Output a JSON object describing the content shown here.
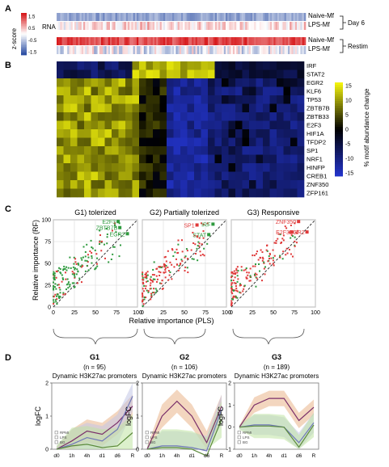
{
  "panels": {
    "A": {
      "letter": "A",
      "row_label": "RNA",
      "colorbar_title": "z-score",
      "colorbar_ticks": [
        "1.5",
        "0.5",
        "-0.5",
        "-1.5"
      ],
      "rows": [
        "Naive-Mf",
        "LPS-Mf",
        "Naive-Mf",
        "LPS-Mf"
      ],
      "groups": [
        "Day 6",
        "Restim"
      ],
      "colors": {
        "high": "#d7191c",
        "mid": "#ffffff",
        "low": "#2c4ea3"
      }
    },
    "B": {
      "letter": "B",
      "genes": [
        "IRF",
        "STAT2",
        "EGR2",
        "KLF6",
        "TP53",
        "ZBTB7B",
        "ZBTB33",
        "E2F3",
        "HIF1A",
        "TFDP2",
        "SP1",
        "NRF1",
        "HINFP",
        "CREB1",
        "ZNF350",
        "ZFP161"
      ],
      "colorbar_title": "% motif abundance change",
      "colorbar_ticks": [
        "15",
        "10",
        "5",
        "0",
        "-5",
        "-10",
        "-15"
      ],
      "colors": {
        "high": "#f2f20c",
        "mid": "#000000",
        "low": "#2233c8"
      }
    },
    "C": {
      "letter": "C",
      "ylabel": "Relative importance (RF)",
      "xlabel": "Relative importance (PLS)",
      "point_colors": {
        "green": "#2e9a3e",
        "red": "#e03a3a"
      },
      "chart_data": [
        {
          "type": "scatter",
          "title": "G1) tolerized",
          "xlim": [
            0,
            100
          ],
          "ylim": [
            0,
            100
          ],
          "xticks": [
            "0",
            "25",
            "50",
            "75",
            "100"
          ],
          "yticks": [
            "0",
            "25",
            "50",
            "75",
            "100"
          ],
          "labels": [
            {
              "text": "E2F3",
              "x": 77,
              "y": 98,
              "color": "#2e9a3e"
            },
            {
              "text": "ZBTB7B",
              "x": 79,
              "y": 91,
              "color": "#2e9a3e"
            },
            {
              "text": "EGR2",
              "x": 88,
              "y": 84,
              "color": "#2e9a3e"
            }
          ]
        },
        {
          "type": "scatter",
          "title": "G2) Partially tolerized",
          "xlim": [
            0,
            100
          ],
          "ylim": [
            0,
            100
          ],
          "xticks": [
            "0",
            "25",
            "50",
            "75",
            "100"
          ],
          "labels": [
            {
              "text": "SP1",
              "x": 65,
              "y": 94,
              "color": "#e03a3a"
            },
            {
              "text": "IRF",
              "x": 84,
              "y": 95,
              "color": "#2e9a3e"
            },
            {
              "text": "STAT",
              "x": 79,
              "y": 83,
              "color": "#2e9a3e"
            }
          ]
        },
        {
          "type": "scatter",
          "title": "G3) Responsive",
          "xlim": [
            0,
            100
          ],
          "ylim": [
            0,
            100
          ],
          "xticks": [
            "0",
            "25",
            "50",
            "75",
            "100"
          ],
          "labels": [
            {
              "text": "ZNF350",
              "x": 80,
              "y": 98,
              "color": "#e03a3a"
            },
            {
              "text": "E2F3",
              "x": 72,
              "y": 86,
              "color": "#e03a3a"
            },
            {
              "text": "EGR2",
              "x": 90,
              "y": 86,
              "color": "#e03a3a"
            }
          ]
        }
      ]
    },
    "D": {
      "letter": "D",
      "ylabel": "logFC",
      "xticks": [
        "d0",
        "1h",
        "4h",
        "d1",
        "d6",
        "R"
      ],
      "legend": [
        "RPMI",
        "LPS",
        "BG"
      ],
      "chart_data": [
        {
          "type": "line",
          "name": "G1",
          "count": "(n = 95)",
          "title": "Dynamic H3K27ac promoters",
          "x": [
            "d0",
            "1h",
            "4h",
            "d1",
            "d6",
            "R"
          ],
          "ylim": [
            0,
            2
          ],
          "yticks": [
            "0",
            "1",
            "2"
          ],
          "series": [
            {
              "color": "#7a2f6a",
              "fill": "#e9b48a",
              "values": [
                0,
                0.25,
                0.55,
                0.45,
                0.8,
                1.3
              ]
            },
            {
              "color": "#6f78b8",
              "fill": "#c3c6e6",
              "values": [
                0,
                0.15,
                0.35,
                0.25,
                0.6,
                1.6
              ]
            },
            {
              "color": "#5c8a3c",
              "fill": "#bfe3a3",
              "values": [
                0,
                0.1,
                0.15,
                0.05,
                0.1,
                0.5
              ]
            }
          ]
        },
        {
          "type": "line",
          "name": "G2",
          "count": "(n = 106)",
          "title": "Dynamic H3K27ac promoters",
          "x": [
            "d0",
            "1h",
            "4h",
            "d1",
            "d6",
            "R"
          ],
          "ylim": [
            0,
            2
          ],
          "yticks": [
            "0",
            "1",
            "2"
          ],
          "series": [
            {
              "color": "#7a2f6a",
              "fill": "#e9b48a",
              "values": [
                0,
                1.0,
                1.45,
                1.0,
                0.2,
                1.3
              ]
            },
            {
              "color": "#6f78b8",
              "fill": "#c3c6e6",
              "values": [
                0,
                0.1,
                0.1,
                0.05,
                -0.05,
                1.2
              ]
            },
            {
              "color": "#5c8a3c",
              "fill": "#bfe3a3",
              "values": [
                0,
                0.05,
                0.05,
                0.0,
                -0.2,
                0.9
              ]
            }
          ]
        },
        {
          "type": "line",
          "name": "G3",
          "count": "(n = 189)",
          "title": "Dynamic H3K27ac promoters",
          "x": [
            "d0",
            "1h",
            "4h",
            "d1",
            "d6",
            "R"
          ],
          "ylim": [
            -1,
            2
          ],
          "yticks": [
            "-1",
            "0",
            "1",
            "2"
          ],
          "series": [
            {
              "color": "#7a2f6a",
              "fill": "#e9b48a",
              "values": [
                0,
                1.0,
                1.3,
                1.3,
                0.3,
                0.9
              ]
            },
            {
              "color": "#6f78b8",
              "fill": "#c3c6e6",
              "values": [
                0,
                0.1,
                0.1,
                0.0,
                -0.7,
                0.2
              ]
            },
            {
              "color": "#5c8a3c",
              "fill": "#bfe3a3",
              "values": [
                0,
                0.05,
                0.05,
                0.0,
                -0.9,
                0.1
              ]
            }
          ]
        }
      ]
    }
  }
}
